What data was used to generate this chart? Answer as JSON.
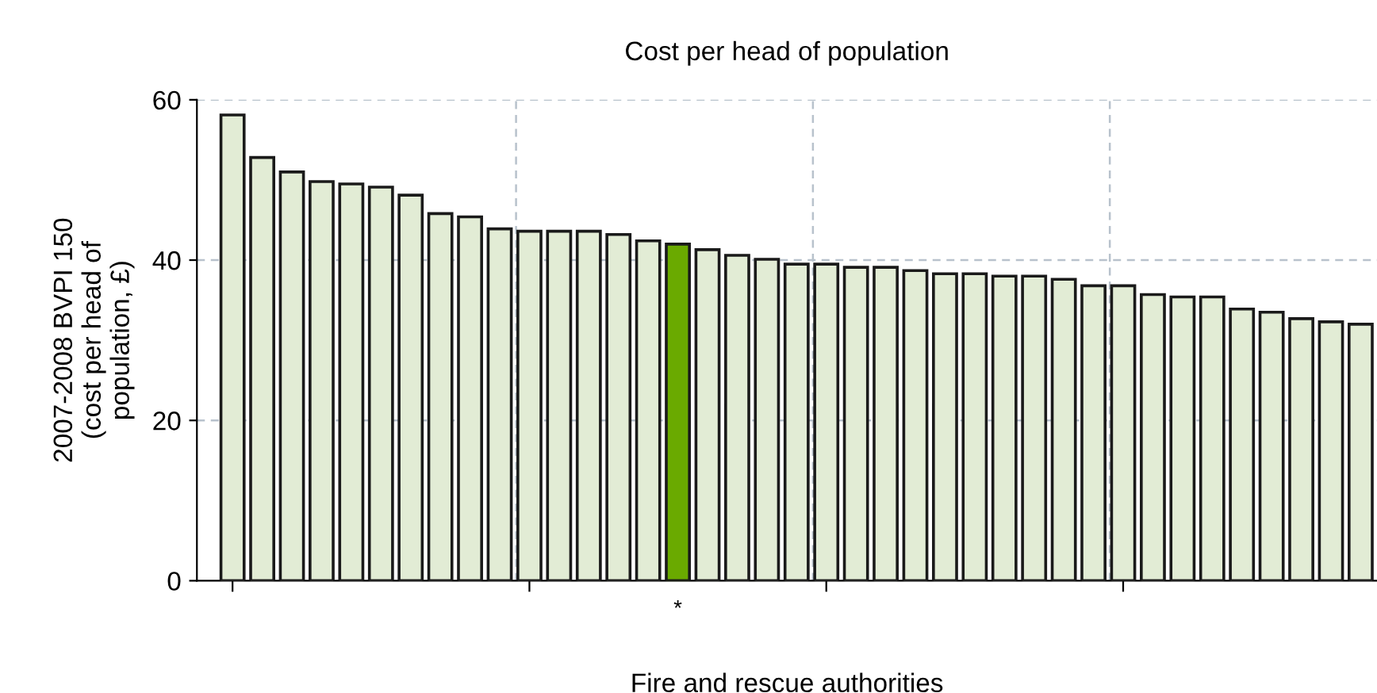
{
  "chart_data": {
    "type": "bar",
    "title": "Cost per head of population",
    "xlabel": "Fire and rescue authorities",
    "ylabel": "2007-2008 BVPI 150\n(cost per head of\npopulation, £)",
    "categories": [
      null,
      null,
      null,
      null,
      null,
      null,
      null,
      null,
      null,
      null,
      null,
      null,
      null,
      null,
      null,
      "*",
      null,
      null,
      null,
      null,
      null,
      null,
      null,
      null,
      null,
      null,
      null,
      null,
      null,
      null,
      null,
      null,
      null,
      null,
      null,
      null,
      null,
      null,
      null
    ],
    "values": [
      58.1,
      52.8,
      51.0,
      49.8,
      49.5,
      49.1,
      48.1,
      45.8,
      45.4,
      43.9,
      43.6,
      43.6,
      43.6,
      43.2,
      42.4,
      42.0,
      41.3,
      40.6,
      40.1,
      39.5,
      39.5,
      39.1,
      39.1,
      38.7,
      38.3,
      38.3,
      38.0,
      38.0,
      37.6,
      36.8,
      36.8,
      35.7,
      35.4,
      35.4,
      33.9,
      33.5,
      32.7,
      32.3,
      32.0
    ],
    "colors": [
      "#e2ecd5",
      "#e2ecd5",
      "#e2ecd5",
      "#e2ecd5",
      "#e2ecd5",
      "#e2ecd5",
      "#e2ecd5",
      "#e2ecd5",
      "#e2ecd5",
      "#e2ecd5",
      "#e2ecd5",
      "#e2ecd5",
      "#e2ecd5",
      "#e2ecd5",
      "#e2ecd5",
      "#6aaa00",
      "#e2ecd5",
      "#e2ecd5",
      "#e2ecd5",
      "#e2ecd5",
      "#e2ecd5",
      "#e2ecd5",
      "#e2ecd5",
      "#e2ecd5",
      "#e2ecd5",
      "#e2ecd5",
      "#e2ecd5",
      "#e2ecd5",
      "#e2ecd5",
      "#e2ecd5",
      "#e2ecd5",
      "#e2ecd5",
      "#e2ecd5",
      "#e2ecd5",
      "#e2ecd5",
      "#e2ecd5",
      "#e2ecd5",
      "#e2ecd5",
      "#e2ecd5"
    ],
    "ylim": [
      0,
      60
    ],
    "yticks": [
      0,
      20,
      40,
      60
    ],
    "grid": true
  }
}
